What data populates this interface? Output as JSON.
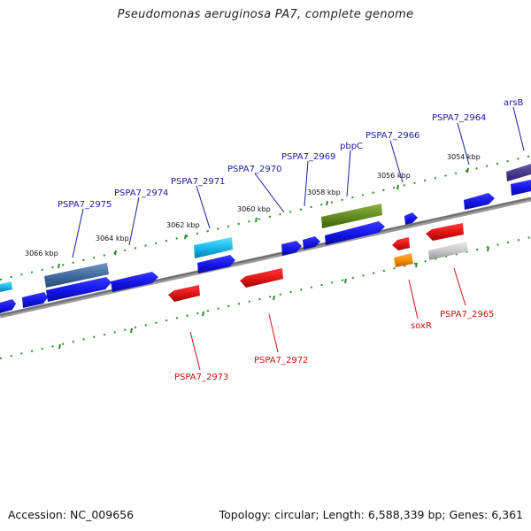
{
  "title": "Pseudomonas aeruginosa PA7, complete genome",
  "footer": {
    "accession": "Accession: NC_009656",
    "summary": "Topology: circular; Length: 6,588,339 bp; Genes: 6,361"
  },
  "scale_labels": [
    "3066 kbp",
    "3064 kbp",
    "3062 kbp",
    "3060 kbp",
    "3058 kbp",
    "3056 kbp",
    "3054 kbp"
  ],
  "gene_labels_top": [
    "PSPA7_2975",
    "PSPA7_2974",
    "PSPA7_2971",
    "PSPA7_2970",
    "PSPA7_2969",
    "pbpC",
    "PSPA7_2966",
    "PSPA7_2964",
    "arsB"
  ],
  "gene_labels_bottom": [
    "PSPA7_2973",
    "PSPA7_2972",
    "soxR",
    "PSPA7_2965"
  ],
  "colors": {
    "cds_forward": "#1414e6",
    "cds_reverse": "#e01414",
    "backbone": "#808080",
    "ticks": "#2a8a2a",
    "label_top": "#1a1aa0",
    "label_bottom": "#cc1010"
  }
}
